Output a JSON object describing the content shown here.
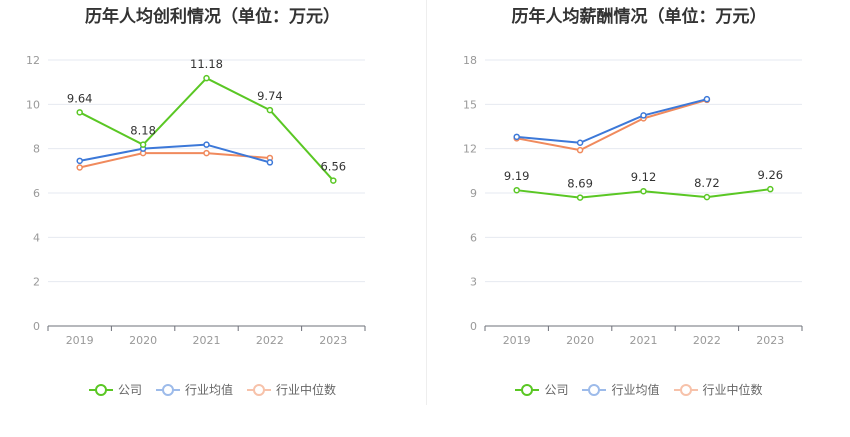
{
  "colors": {
    "company": "#5ac724",
    "industry_avg": "#3c78d8",
    "industry_median": "#f08a5d"
  },
  "chart_data": [
    {
      "type": "line",
      "title": "历年人均创利情况（单位：万元）",
      "categories": [
        "2019",
        "2020",
        "2021",
        "2022",
        "2023"
      ],
      "ylim": [
        0,
        12
      ],
      "yticks": [
        0,
        2,
        4,
        6,
        8,
        10,
        12
      ],
      "grid": true,
      "legend_position": "bottom",
      "series": [
        {
          "name": "公司",
          "values": [
            9.64,
            8.18,
            11.18,
            9.74,
            6.56
          ],
          "labels": [
            "9.64",
            "8.18",
            "11.18",
            "9.74",
            "6.56"
          ]
        },
        {
          "name": "行业均值",
          "values": [
            7.45,
            8.0,
            8.18,
            7.38,
            null
          ]
        },
        {
          "name": "行业中位数",
          "values": [
            7.15,
            7.8,
            7.8,
            7.58,
            null
          ]
        }
      ]
    },
    {
      "type": "line",
      "title": "历年人均薪酬情况（单位：万元）",
      "categories": [
        "2019",
        "2020",
        "2021",
        "2022",
        "2023"
      ],
      "ylim": [
        0,
        18
      ],
      "yticks": [
        0,
        3,
        6,
        9,
        12,
        15,
        18
      ],
      "grid": true,
      "legend_position": "bottom",
      "series": [
        {
          "name": "公司",
          "values": [
            9.19,
            8.69,
            9.12,
            8.72,
            9.26
          ],
          "labels": [
            "9.19",
            "8.69",
            "9.12",
            "8.72",
            "9.26"
          ]
        },
        {
          "name": "行业均值",
          "values": [
            12.8,
            12.4,
            14.25,
            15.35,
            null
          ]
        },
        {
          "name": "行业中位数",
          "values": [
            12.7,
            11.9,
            14.05,
            15.3,
            null
          ]
        }
      ]
    }
  ]
}
